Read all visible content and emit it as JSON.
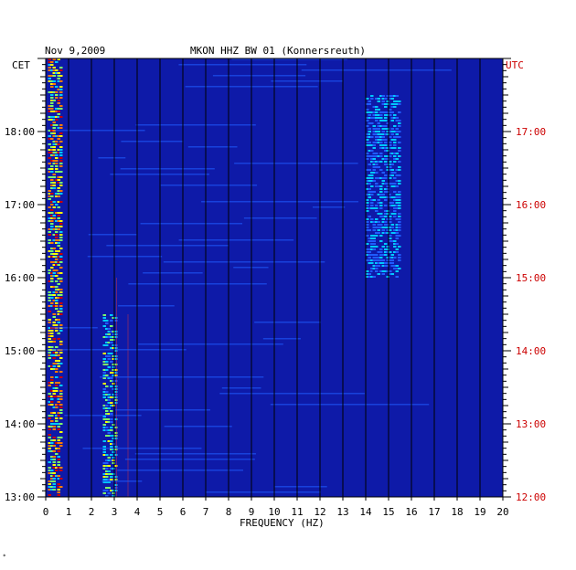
{
  "header": {
    "date": "Nov 9,2009",
    "station": "MKON HHZ BW 01 (Konnersreuth)"
  },
  "axes": {
    "left_zone": "CET",
    "right_zone": "UTC",
    "xlabel": "FREQUENCY (HZ)"
  },
  "footnote": "*",
  "colors": {
    "background": "#0e1aa8",
    "left_axis_text": "#000000",
    "right_axis_text": "#cc0000",
    "grid": "#000000"
  },
  "chart_data": {
    "type": "heatmap",
    "title": "MKON HHZ BW 01 (Konnersreuth)",
    "date": "Nov 9,2009",
    "xlabel": "FREQUENCY (HZ)",
    "xlim": [
      0,
      20
    ],
    "x_ticks": [
      "0",
      "1",
      "2",
      "3",
      "4",
      "5",
      "6",
      "7",
      "8",
      "9",
      "10",
      "11",
      "12",
      "13",
      "14",
      "15",
      "16",
      "17",
      "18",
      "19",
      "20"
    ],
    "y_left_label": "CET",
    "y_left_range_hours": [
      13,
      19
    ],
    "y_left_ticks": [
      "13:00",
      "14:00",
      "15:00",
      "16:00",
      "17:00",
      "18:00"
    ],
    "y_right_label": "UTC",
    "y_right_range_hours": [
      12,
      18
    ],
    "y_right_ticks": [
      "12:00",
      "13:00",
      "14:00",
      "15:00",
      "16:00",
      "17:00"
    ],
    "grid": true,
    "colormap": [
      "#0e1aa8",
      "#1f5cff",
      "#00c8ff",
      "#7cff6a",
      "#ffff00",
      "#ff7a00",
      "#cc0000"
    ],
    "features": [
      {
        "name": "low-frequency microseism band",
        "freq_hz": [
          0.1,
          0.7
        ],
        "time_cet": [
          "13:00",
          "19:00"
        ],
        "intensity": 0.95
      },
      {
        "name": "2.5-3 Hz tonal band",
        "freq_hz": [
          2.5,
          3.1
        ],
        "time_cet": [
          "13:00",
          "15:30"
        ],
        "intensity": 0.6
      },
      {
        "name": "14-15.5 Hz band",
        "freq_hz": [
          14.0,
          15.5
        ],
        "time_cet": [
          "16:00",
          "18:30"
        ],
        "intensity": 0.4
      },
      {
        "name": "line 3.1 Hz",
        "freq_hz": [
          3.1,
          3.1
        ],
        "time_cet": [
          "13:00",
          "16:00"
        ],
        "intensity": 0.5
      },
      {
        "name": "line 3.6 Hz",
        "freq_hz": [
          3.6,
          3.6
        ],
        "time_cet": [
          "13:00",
          "15:30"
        ],
        "intensity": 0.5
      }
    ]
  }
}
